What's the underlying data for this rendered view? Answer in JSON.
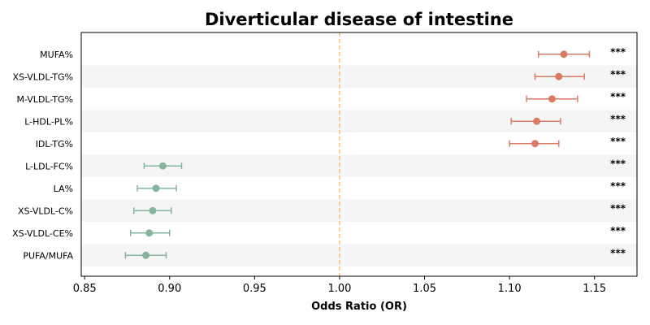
{
  "chart_data": {
    "type": "forest",
    "title": "Diverticular disease of intestine",
    "xlabel": "Odds Ratio (OR)",
    "xlim": [
      0.848,
      1.175
    ],
    "xticks": [
      "0.85",
      "0.90",
      "0.95",
      "1.00",
      "1.05",
      "1.10",
      "1.15"
    ],
    "xtick_values": [
      0.85,
      0.9,
      0.95,
      1.0,
      1.05,
      1.1,
      1.15
    ],
    "reference_line": 1.0,
    "colors": {
      "risk": "#d97b63",
      "protective": "#86b59e",
      "reference_line": "#f2c46e",
      "stripe": "#f5f5f5"
    },
    "rows": [
      {
        "label": "MUFA%",
        "or": 1.132,
        "lo": 1.117,
        "hi": 1.147,
        "sig": "***",
        "group": "risk"
      },
      {
        "label": "XS-VLDL-TG%",
        "or": 1.129,
        "lo": 1.115,
        "hi": 1.144,
        "sig": "***",
        "group": "risk"
      },
      {
        "label": "M-VLDL-TG%",
        "or": 1.125,
        "lo": 1.11,
        "hi": 1.14,
        "sig": "***",
        "group": "risk"
      },
      {
        "label": "L-HDL-PL%",
        "or": 1.116,
        "lo": 1.101,
        "hi": 1.13,
        "sig": "***",
        "group": "risk"
      },
      {
        "label": "IDL-TG%",
        "or": 1.115,
        "lo": 1.1,
        "hi": 1.129,
        "sig": "***",
        "group": "risk"
      },
      {
        "label": "L-LDL-FC%",
        "or": 0.896,
        "lo": 0.885,
        "hi": 0.907,
        "sig": "***",
        "group": "protective"
      },
      {
        "label": "LA%",
        "or": 0.892,
        "lo": 0.881,
        "hi": 0.904,
        "sig": "***",
        "group": "protective"
      },
      {
        "label": "XS-VLDL-C%",
        "or": 0.89,
        "lo": 0.879,
        "hi": 0.901,
        "sig": "***",
        "group": "protective"
      },
      {
        "label": "XS-VLDL-CE%",
        "or": 0.888,
        "lo": 0.877,
        "hi": 0.9,
        "sig": "***",
        "group": "protective"
      },
      {
        "label": "PUFA/MUFA",
        "or": 0.886,
        "lo": 0.874,
        "hi": 0.898,
        "sig": "***",
        "group": "protective"
      }
    ]
  }
}
